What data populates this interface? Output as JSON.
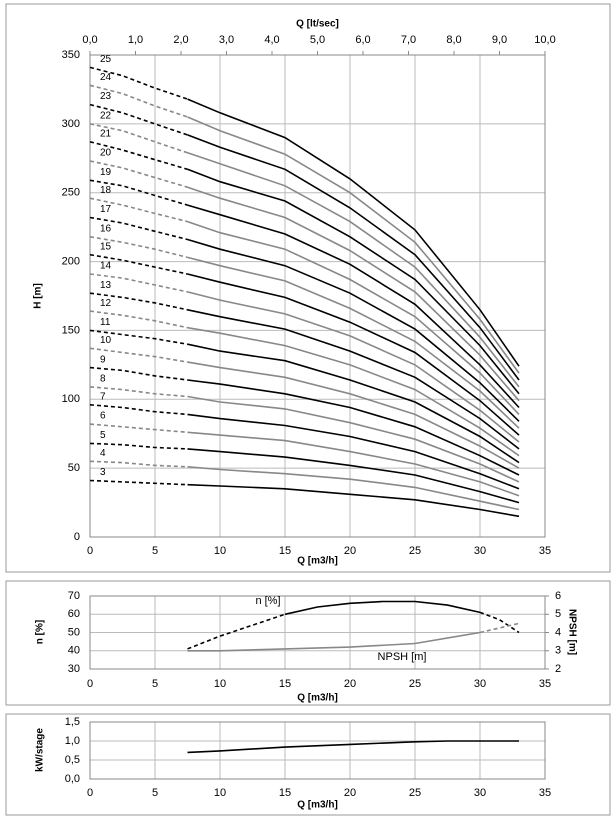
{
  "chart_data": [
    {
      "type": "line",
      "xlabel": "Q [m3/h]",
      "ylabel": "H [m]",
      "x2label": "Q [lt/sec]",
      "x": [
        0,
        2.5,
        5,
        7.5,
        10,
        15,
        20,
        25,
        30,
        33
      ],
      "xlim": [
        0,
        35
      ],
      "xticks": [
        0,
        5,
        10,
        15,
        20,
        25,
        30,
        35
      ],
      "ylim": [
        0,
        350
      ],
      "yticks": [
        0,
        50,
        100,
        150,
        200,
        250,
        300,
        350
      ],
      "x2lim": [
        0,
        10
      ],
      "x2ticks": [
        {
          "value": 0,
          "label": "0,0"
        },
        {
          "value": 1,
          "label": "1,0"
        },
        {
          "value": 2,
          "label": "2,0"
        },
        {
          "value": 3,
          "label": "3,0"
        },
        {
          "value": 4,
          "label": "4,0"
        },
        {
          "value": 5,
          "label": "5,0"
        },
        {
          "value": 6,
          "label": "6,0"
        },
        {
          "value": 7,
          "label": "7,0"
        },
        {
          "value": 8,
          "label": "8,0"
        },
        {
          "value": 9,
          "label": "9,0"
        },
        {
          "value": 10,
          "label": "10,0"
        }
      ],
      "grid": true,
      "dashed_ranges": [
        [
          0,
          7.5
        ]
      ],
      "series": [
        {
          "name": "3",
          "color": "#000000",
          "values": [
            41,
            40,
            39,
            38,
            37,
            35,
            31,
            27,
            20,
            15
          ]
        },
        {
          "name": "4",
          "color": "#888888",
          "values": [
            55,
            54,
            52,
            51,
            49,
            46,
            42,
            36,
            26,
            20
          ]
        },
        {
          "name": "5",
          "color": "#000000",
          "values": [
            68,
            67,
            65,
            64,
            62,
            58,
            52,
            45,
            33,
            25
          ]
        },
        {
          "name": "6",
          "color": "#888888",
          "values": [
            82,
            80,
            78,
            76,
            74,
            70,
            62,
            53,
            40,
            30
          ]
        },
        {
          "name": "7",
          "color": "#000000",
          "values": [
            96,
            94,
            91,
            89,
            86,
            81,
            73,
            62,
            46,
            35
          ]
        },
        {
          "name": "8",
          "color": "#888888",
          "values": [
            109,
            107,
            104,
            102,
            98,
            93,
            83,
            71,
            53,
            40
          ]
        },
        {
          "name": "9",
          "color": "#000000",
          "values": [
            123,
            121,
            117,
            114,
            111,
            104,
            94,
            80,
            59,
            45
          ]
        },
        {
          "name": "10",
          "color": "#888888",
          "values": [
            137,
            134,
            131,
            127,
            123,
            116,
            104,
            89,
            66,
            50
          ]
        },
        {
          "name": "11",
          "color": "#000000",
          "values": [
            150,
            147,
            144,
            140,
            135,
            128,
            114,
            98,
            73,
            54
          ]
        },
        {
          "name": "12",
          "color": "#888888",
          "values": [
            164,
            161,
            157,
            152,
            148,
            139,
            125,
            107,
            79,
            59
          ]
        },
        {
          "name": "13",
          "color": "#000000",
          "values": [
            177,
            174,
            170,
            165,
            160,
            151,
            135,
            116,
            86,
            64
          ]
        },
        {
          "name": "14",
          "color": "#888888",
          "values": [
            191,
            188,
            183,
            178,
            172,
            162,
            146,
            125,
            92,
            69
          ]
        },
        {
          "name": "15",
          "color": "#000000",
          "values": [
            205,
            201,
            196,
            191,
            185,
            174,
            156,
            134,
            99,
            74
          ]
        },
        {
          "name": "16",
          "color": "#888888",
          "values": [
            218,
            214,
            209,
            203,
            197,
            186,
            166,
            142,
            106,
            79
          ]
        },
        {
          "name": "17",
          "color": "#000000",
          "values": [
            232,
            228,
            222,
            216,
            209,
            197,
            177,
            151,
            112,
            84
          ]
        },
        {
          "name": "18",
          "color": "#888888",
          "values": [
            246,
            241,
            235,
            229,
            221,
            209,
            187,
            160,
            119,
            89
          ]
        },
        {
          "name": "19",
          "color": "#000000",
          "values": [
            259,
            255,
            248,
            241,
            234,
            220,
            198,
            169,
            125,
            94
          ]
        },
        {
          "name": "20",
          "color": "#888888",
          "values": [
            273,
            268,
            261,
            254,
            246,
            232,
            208,
            178,
            132,
            99
          ]
        },
        {
          "name": "21",
          "color": "#000000",
          "values": [
            287,
            281,
            274,
            267,
            258,
            244,
            218,
            187,
            139,
            104
          ]
        },
        {
          "name": "22",
          "color": "#888888",
          "values": [
            300,
            295,
            287,
            279,
            271,
            255,
            229,
            196,
            145,
            109
          ]
        },
        {
          "name": "23",
          "color": "#000000",
          "values": [
            314,
            308,
            300,
            292,
            283,
            267,
            239,
            205,
            152,
            114
          ]
        },
        {
          "name": "24",
          "color": "#888888",
          "values": [
            328,
            322,
            313,
            305,
            295,
            278,
            250,
            214,
            158,
            119
          ]
        },
        {
          "name": "25",
          "color": "#000000",
          "values": [
            341,
            335,
            326,
            318,
            308,
            290,
            260,
            223,
            165,
            124
          ]
        }
      ]
    },
    {
      "type": "line",
      "xlabel": "Q [m3/h]",
      "ylabel": "n [%]",
      "y2label": "NPSH [m]",
      "xlim": [
        0,
        35
      ],
      "xticks": [
        0,
        5,
        10,
        15,
        20,
        25,
        30,
        35
      ],
      "ylim": [
        30,
        70
      ],
      "yticks": [
        30,
        40,
        50,
        60,
        70
      ],
      "y2lim": [
        2,
        6
      ],
      "y2ticks": [
        2,
        3,
        4,
        5,
        6
      ],
      "grid": true,
      "series": [
        {
          "name": "n [%]",
          "color": "#000000",
          "x": [
            7.5,
            10,
            12.5,
            15,
            17.5,
            20,
            22.5,
            25,
            27.5,
            30,
            31.5,
            33
          ],
          "values": [
            41,
            48,
            54,
            60,
            64,
            66,
            67,
            67,
            65,
            61,
            57,
            50
          ],
          "dashed_ranges": [
            [
              7.5,
              15
            ],
            [
              30,
              33
            ]
          ]
        },
        {
          "name": "NPSH [m]",
          "color": "#888888",
          "axis": "y2",
          "x": [
            7.5,
            10,
            15,
            20,
            25,
            30,
            33
          ],
          "values": [
            3.0,
            3.0,
            3.1,
            3.2,
            3.4,
            4.0,
            4.5
          ],
          "dashed_ranges": [
            [
              30,
              33
            ]
          ]
        }
      ]
    },
    {
      "type": "line",
      "xlabel": "Q [m3/h]",
      "ylabel": "kW/stage",
      "x": [
        7.5,
        10,
        15,
        20,
        25,
        27.5,
        33
      ],
      "values": [
        0.7,
        0.74,
        0.84,
        0.91,
        0.98,
        1.0,
        1.0
      ],
      "color": "#000000",
      "xlim": [
        0,
        35
      ],
      "xticks": [
        0,
        5,
        10,
        15,
        20,
        25,
        30,
        35
      ],
      "ylim": [
        0,
        1.5
      ],
      "yticks": [
        {
          "value": 0,
          "label": "0,0"
        },
        {
          "value": 0.5,
          "label": "0,5"
        },
        {
          "value": 1,
          "label": "1,0"
        },
        {
          "value": 1.5,
          "label": "1,5"
        }
      ],
      "grid": true
    }
  ]
}
